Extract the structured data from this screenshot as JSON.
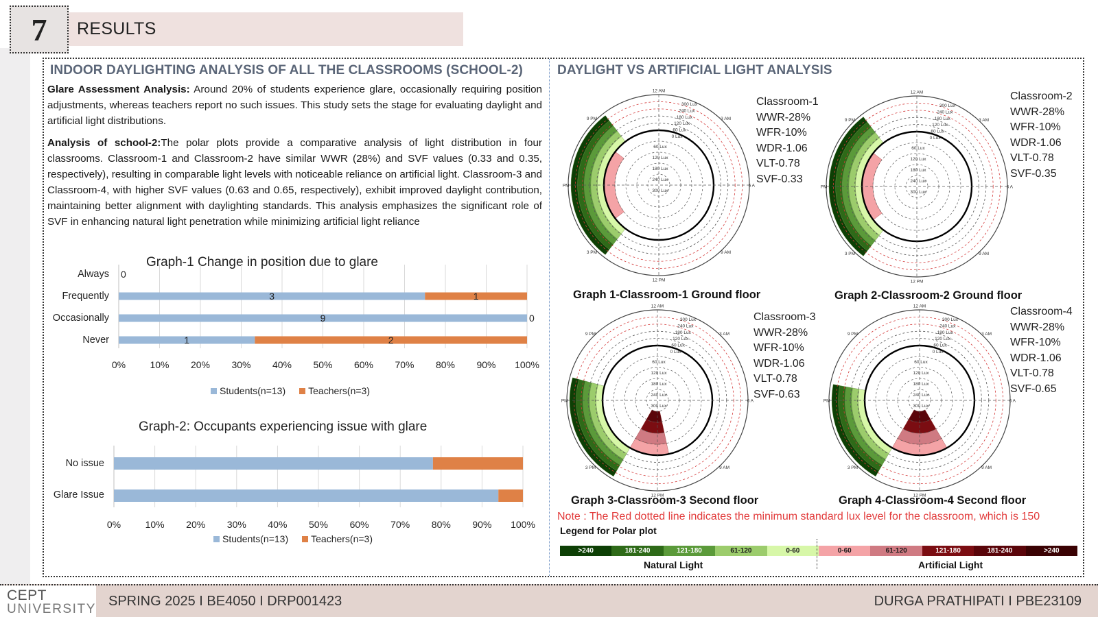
{
  "section": {
    "number": "7",
    "title": "RESULTS"
  },
  "left": {
    "heading": "INDOOR DAYLIGHTING ANALYSIS OF ALL THE CLASSROOMS (SCHOOL-2)",
    "glare_label": "Glare Assessment Analysis:",
    "glare_text": " Around 20% of students experience glare, occasionally requiring position adjustments, whereas teachers report no such issues. This study sets the stage for evaluating daylight and artificial light distributions.",
    "analysis_label": "Analysis of school-2:",
    "analysis_text": "The polar plots provide a comparative analysis of light distribution in four classrooms. Classroom-1 and Classroom-2 have similar WWR (28%) and SVF values (0.33 and 0.35, respectively), resulting in comparable light levels with noticeable reliance on artificial light. Classroom-3 and Classroom-4, with higher SVF values (0.63 and 0.65, respectively), exhibit improved daylight contribution, maintaining better alignment with daylighting standards. This analysis emphasizes the significant role of SVF in enhancing natural light penetration while minimizing artificial light reliance"
  },
  "right": {
    "heading": "DAYLIGHT VS ARTIFICIAL LIGHT ANALYSIS"
  },
  "chart_data": [
    {
      "type": "bar",
      "stacked": "percent",
      "orientation": "horizontal",
      "title": "Graph-1 Change in position due to glare",
      "categories": [
        "Always",
        "Frequently",
        "Occasionally",
        "Never"
      ],
      "series": [
        {
          "name": "Students(n=13)",
          "color": "#9ab8d8",
          "values": [
            0,
            3,
            9,
            1
          ],
          "labels": [
            "0",
            "3",
            "9",
            "1"
          ]
        },
        {
          "name": "Teachers(n=3)",
          "color": "#df8146",
          "values": [
            0,
            1,
            0,
            2
          ],
          "labels": [
            "",
            "1",
            "0",
            "2"
          ]
        }
      ],
      "xticks": [
        "0%",
        "10%",
        "20%",
        "30%",
        "40%",
        "50%",
        "60%",
        "70%",
        "80%",
        "90%",
        "100%"
      ],
      "xlim": [
        0,
        100
      ],
      "legend": "bottom"
    },
    {
      "type": "bar",
      "stacked": "percent",
      "orientation": "horizontal",
      "title": "Graph-2: Occupants experiencing  issue with glare",
      "categories": [
        "No issue",
        "Glare Issue"
      ],
      "series": [
        {
          "name": "Students(n=13)",
          "color": "#9ab8d8",
          "values": [
            78,
            94
          ]
        },
        {
          "name": "Teachers(n=3)",
          "color": "#df8146",
          "values": [
            22,
            6
          ]
        }
      ],
      "xticks": [
        "0%",
        "10%",
        "20%",
        "30%",
        "40%",
        "50%",
        "60%",
        "70%",
        "80%",
        "90%",
        "100%"
      ],
      "xlim": [
        0,
        100
      ],
      "legend": "bottom"
    }
  ],
  "polar": {
    "hour_labels": [
      "12 AM",
      "3 AM",
      "6 AM",
      "9 AM",
      "12 PM",
      "3 PM",
      "6 PM",
      "9 PM"
    ],
    "outer_lux_labels": [
      "300 Lux",
      "240 Lux",
      "180 Lux",
      "120 Lux",
      "60 Lux",
      "0 Lux"
    ],
    "inner_lux_labels": [
      "60 Lux",
      "120 Lux",
      "180 Lux",
      "240 Lux",
      "300 Lux"
    ],
    "plots": [
      {
        "caption": "Graph 1-Classroom-1 Ground floor",
        "info": [
          "Classroom-1",
          "WWR-28%",
          "WFR-10%",
          "WDR-1.06",
          "VLT-0.78",
          "SVF-0.33"
        ],
        "natural": {
          "start_hour": 14.5,
          "end_hour": 21.5,
          "rings": 5
        },
        "artificial": {
          "start_hour": 15.5,
          "end_hour": 20.5,
          "rings": 1
        }
      },
      {
        "caption": "Graph 2-Classroom-2 Ground floor",
        "info": [
          "Classroom-2",
          "WWR-28%",
          "WFR-10%",
          "WDR-1.06",
          "VLT-0.78",
          "SVF-0.35"
        ],
        "natural": {
          "start_hour": 14.5,
          "end_hour": 21.5,
          "rings": 5
        },
        "artificial": {
          "start_hour": 15.5,
          "end_hour": 20.5,
          "rings": 1
        }
      },
      {
        "caption": "Graph 3-Classroom-3 Second floor",
        "info": [
          "Classroom-3",
          "WWR-28%",
          "WFR-10%",
          "WDR-1.06",
          "VLT-0.78",
          "SVF-0.63"
        ],
        "natural": {
          "start_hour": 14.0,
          "end_hour": 19.0,
          "rings": 5
        },
        "artificial": {
          "start_hour": 11.2,
          "end_hour": 14.0,
          "rings": 4
        }
      },
      {
        "caption": "Graph 4-Classroom-4 Second floor",
        "info": [
          "Classroom-4",
          "WWR-28%",
          "WFR-10%",
          "WDR-1.06",
          "VLT-0.78",
          "SVF-0.65"
        ],
        "natural": {
          "start_hour": 14.0,
          "end_hour": 18.7,
          "rings": 5
        },
        "artificial": {
          "start_hour": 10.0,
          "end_hour": 14.0,
          "rings": 4
        }
      }
    ]
  },
  "note": "Note : The Red dotted line indicates the minimum standard lux level for the classroom, which is 150",
  "legend": {
    "title": "Legend for Polar plot",
    "natural_label": "Natural Light",
    "artificial_label": "Artificial Light",
    "natural": [
      {
        "label": ">240",
        "color": "#0d3f05",
        "text": "#ffffff"
      },
      {
        "label": "181-240",
        "color": "#2e6a18",
        "text": "#ffffff"
      },
      {
        "label": "121-180",
        "color": "#5b9a3a",
        "text": "#ffffff"
      },
      {
        "label": "61-120",
        "color": "#9ccc6c",
        "text": "#1a1a1a"
      },
      {
        "label": "0-60",
        "color": "#d7f7a8",
        "text": "#1a1a1a"
      }
    ],
    "artificial": [
      {
        "label": "0-60",
        "color": "#f4a3a6",
        "text": "#1a1a1a"
      },
      {
        "label": "61-120",
        "color": "#cf7a82",
        "text": "#1a1a1a"
      },
      {
        "label": "121-180",
        "color": "#7b0d12",
        "text": "#ffffff"
      },
      {
        "label": "181-240",
        "color": "#5a050a",
        "text": "#ffffff"
      },
      {
        "label": ">240",
        "color": "#3a0203",
        "text": "#ffffff"
      }
    ]
  },
  "footer": {
    "logo_line1": "CEPT",
    "logo_line2": "UNIVERSITY",
    "left": "SPRING 2025 I BE4050  I  DRP001423",
    "right": "DURGA PRATHIPATI  I  PBE23109"
  }
}
